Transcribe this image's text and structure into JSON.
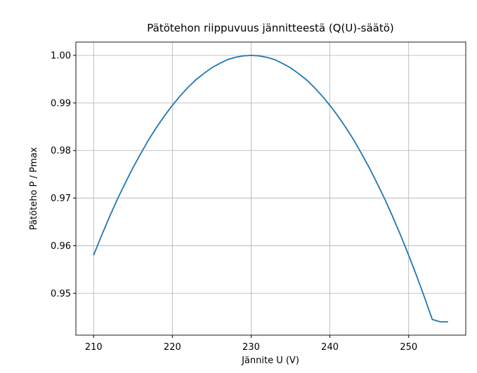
{
  "chart_data": {
    "type": "line",
    "title": "Pätötehon riippuvuus jännitteestä (Q(U)-säätö)",
    "xlabel": "Jännite U (V)",
    "ylabel": "Pätöteho P / Pmax",
    "x": [
      210,
      211,
      212,
      213,
      214,
      215,
      216,
      217,
      218,
      219,
      220,
      221,
      222,
      223,
      224,
      225,
      226,
      227,
      228,
      229,
      230,
      231,
      232,
      233,
      234,
      235,
      236,
      237,
      238,
      239,
      240,
      241,
      242,
      243,
      244,
      245,
      246,
      247,
      248,
      249,
      250,
      251,
      252,
      253,
      254,
      255
    ],
    "series": [
      {
        "name": "P/Pmax",
        "color": "#1f77b4",
        "values": [
          0.958,
          0.9621,
          0.966,
          0.9697,
          0.9731,
          0.9764,
          0.9794,
          0.9823,
          0.9849,
          0.9873,
          0.9895,
          0.9915,
          0.9933,
          0.9949,
          0.9962,
          0.9974,
          0.9983,
          0.9991,
          0.9996,
          0.9999,
          1.0,
          0.9999,
          0.9996,
          0.9991,
          0.9983,
          0.9974,
          0.9962,
          0.9949,
          0.9933,
          0.9915,
          0.9895,
          0.9873,
          0.9849,
          0.9823,
          0.9794,
          0.9764,
          0.9731,
          0.9697,
          0.966,
          0.9621,
          0.958,
          0.9537,
          0.9492,
          0.9445,
          0.944,
          0.944
        ]
      }
    ],
    "xlim": [
      207.75,
      257.25
    ],
    "ylim": [
      0.9412,
      1.0028
    ],
    "xticks": [
      210,
      220,
      230,
      240,
      250
    ],
    "yticks": [
      0.95,
      0.96,
      0.97,
      0.98,
      0.99,
      {
        "value": 1.0,
        "label": "1.00"
      }
    ],
    "grid": true
  }
}
